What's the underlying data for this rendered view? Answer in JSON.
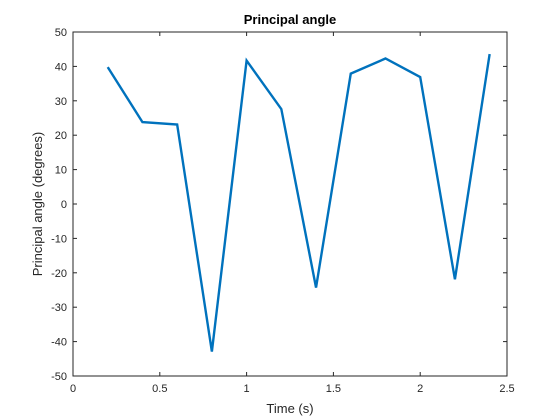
{
  "chart_data": {
    "type": "line",
    "title": "Principal angle",
    "xlabel": "Time (s)",
    "ylabel": "Principal angle (degrees)",
    "xlim": [
      0,
      2.5
    ],
    "ylim": [
      -50,
      50
    ],
    "xticks": [
      0,
      0.5,
      1,
      1.5,
      2,
      2.5
    ],
    "xtick_labels": [
      "0",
      "0.5",
      "1",
      "1.5",
      "2",
      "2.5"
    ],
    "yticks": [
      -50,
      -40,
      -30,
      -20,
      -10,
      0,
      10,
      20,
      30,
      40,
      50
    ],
    "ytick_labels": [
      "-50",
      "-40",
      "-30",
      "-20",
      "-10",
      "0",
      "10",
      "20",
      "30",
      "40",
      "50"
    ],
    "grid": false,
    "series": [
      {
        "color": "#0072BD",
        "x": [
          0.2,
          0.4,
          0.6,
          0.8,
          1.0,
          1.2,
          1.4,
          1.6,
          1.8,
          2.0,
          2.2,
          2.4
        ],
        "y": [
          39.8,
          23.8,
          23.1,
          -42.9,
          41.7,
          27.6,
          -24.3,
          37.9,
          42.3,
          36.9,
          -21.9,
          43.6
        ]
      }
    ]
  }
}
